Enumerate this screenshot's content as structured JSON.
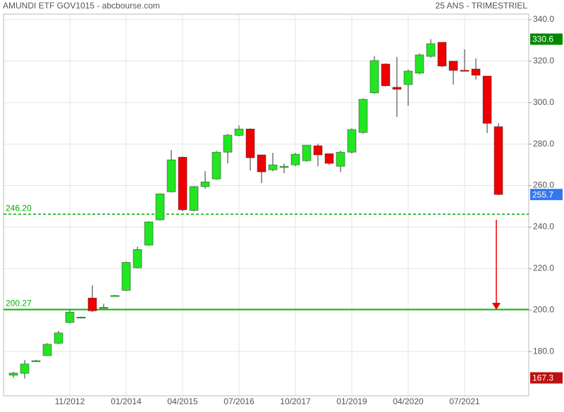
{
  "chart_data": {
    "type": "candlestick",
    "title": "AMUNDI ETF GOV1015 - abcbourse.com",
    "subtitle": "25 ANS - TRIMESTRIEL",
    "x": [
      null,
      null,
      null,
      null,
      null,
      "11/2012",
      null,
      null,
      null,
      null,
      "01/2014",
      null,
      null,
      null,
      null,
      "04/2015",
      null,
      null,
      null,
      null,
      "07/2016",
      null,
      null,
      null,
      null,
      "10/2017",
      null,
      null,
      null,
      null,
      "01/2019",
      null,
      null,
      null,
      null,
      "04/2020",
      null,
      null,
      null,
      null,
      "07/2021",
      null,
      null,
      null
    ],
    "open": [
      168.6,
      169.5,
      175.6,
      178.0,
      184.0,
      194.0,
      196.6,
      205.8,
      201.3,
      207.0,
      209.5,
      220.4,
      231.3,
      243.5,
      257.0,
      273.7,
      248.0,
      259.5,
      263.2,
      276.1,
      284.2,
      287.3,
      274.8,
      267.6,
      269.3,
      270.0,
      272.0,
      279.2,
      275.4,
      269.3,
      276.1,
      285.6,
      304.7,
      318.6,
      307.4,
      308.7,
      314.2,
      322.3,
      329.1,
      320.0,
      315.6,
      316.2,
      312.8,
      288.4
    ],
    "high": [
      170.2,
      175.9,
      176.0,
      184.0,
      190.0,
      200.0,
      196.9,
      211.9,
      203.0,
      207.3,
      223.3,
      230.6,
      242.8,
      256.3,
      277.1,
      274.0,
      259.8,
      267.0,
      276.7,
      284.9,
      289.0,
      287.6,
      274.8,
      275.8,
      270.6,
      275.8,
      279.5,
      280.2,
      275.4,
      276.8,
      287.6,
      302.0,
      322.3,
      319.0,
      322.0,
      315.9,
      323.7,
      330.6,
      329.1,
      320.0,
      325.7,
      321.3,
      312.8,
      290.0
    ],
    "low": [
      167.3,
      167.0,
      175.4,
      178.0,
      183.5,
      193.5,
      196.3,
      199.0,
      201.0,
      206.8,
      209.2,
      220.1,
      231.0,
      243.2,
      256.7,
      247.6,
      247.6,
      258.5,
      262.9,
      270.7,
      283.8,
      267.3,
      261.2,
      266.9,
      266.0,
      269.3,
      271.5,
      269.3,
      270.0,
      266.6,
      275.4,
      285.0,
      304.2,
      307.8,
      293.1,
      298.5,
      313.6,
      321.7,
      317.0,
      308.7,
      315.3,
      311.1,
      285.3,
      255.4
    ],
    "close": [
      169.6,
      174.0,
      175.6,
      183.5,
      189.0,
      199.0,
      196.6,
      199.6,
      201.3,
      207.0,
      223.0,
      229.2,
      242.5,
      256.0,
      272.4,
      248.3,
      259.5,
      261.8,
      276.1,
      284.3,
      287.3,
      273.4,
      266.6,
      270.0,
      269.3,
      275.1,
      279.5,
      274.8,
      270.7,
      276.1,
      287.0,
      301.6,
      320.3,
      308.1,
      306.4,
      315.2,
      323.0,
      328.4,
      317.6,
      315.5,
      315.3,
      313.2,
      290.0,
      255.7
    ],
    "up_color": "#22e622",
    "down_color": "#ee0000",
    "ylim": [
      159,
      342
    ],
    "yticks": [
      {
        "value": 180,
        "label": "180.0"
      },
      {
        "value": 200,
        "label": "200.0"
      },
      {
        "value": 220,
        "label": "220.0"
      },
      {
        "value": 240,
        "label": "240.0"
      },
      {
        "value": 260,
        "label": "260.0"
      },
      {
        "value": 280,
        "label": "280.0"
      },
      {
        "value": 300,
        "label": "300.0"
      },
      {
        "value": 320,
        "label": "320.0"
      },
      {
        "value": 340,
        "label": "340.0"
      }
    ],
    "grid": true,
    "hlines": [
      {
        "value": 246.2,
        "label": "246.20",
        "style": "dashed",
        "color": "#00aa00"
      },
      {
        "value": 200.27,
        "label": "200.27",
        "style": "solid",
        "color": "#00bb00"
      }
    ],
    "price_tags": [
      {
        "value": 330.6,
        "color": "#008800"
      },
      {
        "value": 255.7,
        "color": "#3377ee"
      },
      {
        "value": 167.3,
        "color": "#bb1111"
      }
    ]
  }
}
